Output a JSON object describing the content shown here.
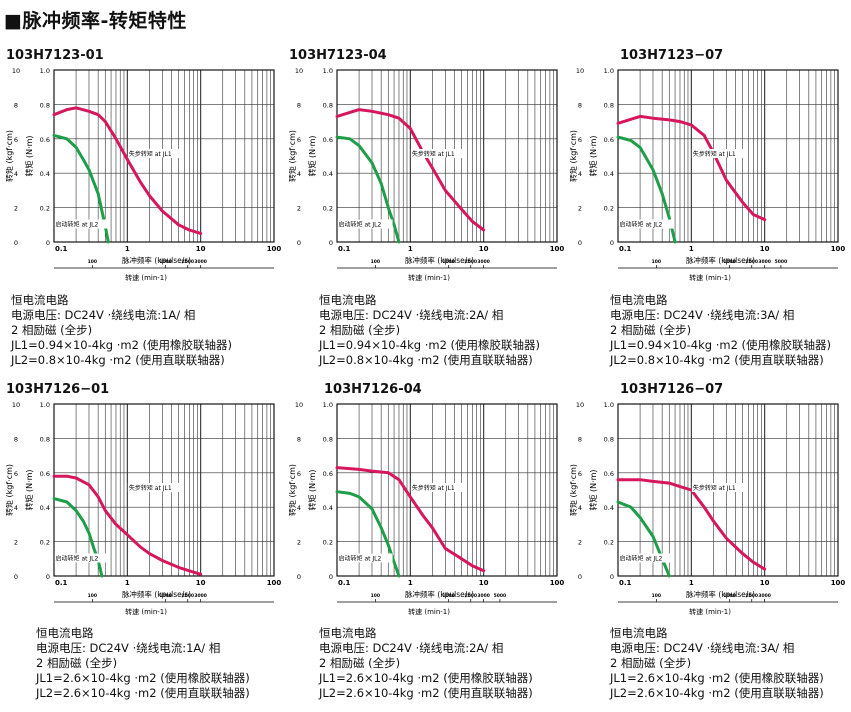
{
  "heading": "■脉冲频率-转矩特性",
  "chart_data": [
    {
      "type": "line",
      "title": "103H7123-01",
      "xlabel": "脉冲频率 (kpulse/s)",
      "ylabel_left": "转矩 (kgf·cm)",
      "ylabel_right": "转矩 (N·m)",
      "speed_label": "转速 (min-1)",
      "x_scale": "log",
      "xlim": [
        0.1,
        100
      ],
      "ylim": [
        0,
        10
      ],
      "left_ticks": [
        "0",
        "2",
        "4",
        "6",
        "8",
        "10"
      ],
      "right_ticks": [
        "0",
        "0.2",
        "0.4",
        "0.6",
        "0.8",
        "1.0"
      ],
      "x_ticks": [
        "0.1",
        "1",
        "10",
        "100"
      ],
      "speed_ticks": [
        "100",
        "1000",
        "2000",
        "3000"
      ],
      "grid": true,
      "annotations": [
        "失步转矩 at JL1",
        "启动转矩 at JL2"
      ],
      "series": [
        {
          "name": "失步转矩 at JL1",
          "color": "#d6175e",
          "x": [
            0.1,
            0.15,
            0.2,
            0.3,
            0.4,
            0.5,
            0.7,
            1,
            1.5,
            2,
            3,
            5,
            7,
            10
          ],
          "y": [
            7.4,
            7.7,
            7.8,
            7.6,
            7.4,
            7.0,
            6.0,
            4.8,
            3.5,
            2.7,
            1.8,
            1.0,
            0.7,
            0.5
          ]
        },
        {
          "name": "启动转矩 at JL2",
          "color": "#1f9e4a",
          "x": [
            0.1,
            0.15,
            0.2,
            0.25,
            0.3,
            0.4,
            0.45,
            0.5,
            0.55
          ],
          "y": [
            6.2,
            6.0,
            5.5,
            4.8,
            4.2,
            2.8,
            1.8,
            0.9,
            0
          ]
        }
      ],
      "notes": [
        "恒电流电路",
        "电源电压:  DC24V ·绕线电流:1A/ 相",
        "2 相励磁 (全步)",
        "JL1=0.94×10-4kg ·m2 (使用橡胶联轴器)",
        "JL2=0.8×10-4kg ·m2 (使用直联联轴器)"
      ]
    },
    {
      "type": "line",
      "title": "103H7123-04",
      "xlabel": "脉冲频率 (kpulse/s)",
      "ylabel_left": "转矩 (kgf·cm)",
      "ylabel_right": "转矩 (N·m)",
      "speed_label": "转速 (min-1)",
      "x_scale": "log",
      "xlim": [
        0.1,
        100
      ],
      "ylim": [
        0,
        10
      ],
      "left_ticks": [
        "0",
        "2",
        "4",
        "6",
        "8",
        "10"
      ],
      "right_ticks": [
        "0",
        "0.2",
        "0.4",
        "0.6",
        "0.8",
        "1.0"
      ],
      "x_ticks": [
        "0.1",
        "1",
        "10",
        "100"
      ],
      "speed_ticks": [
        "100",
        "1000",
        "2000",
        "3000"
      ],
      "grid": true,
      "annotations": [
        "失步转矩 at JL1",
        "启动转矩 at JL2"
      ],
      "series": [
        {
          "name": "失步转矩 at JL1",
          "color": "#d6175e",
          "x": [
            0.1,
            0.2,
            0.3,
            0.5,
            0.7,
            1,
            1.5,
            2,
            3,
            5,
            7,
            10
          ],
          "y": [
            7.3,
            7.7,
            7.6,
            7.4,
            7.2,
            6.6,
            5.2,
            4.3,
            3.0,
            1.9,
            1.2,
            0.7
          ]
        },
        {
          "name": "启动转矩 at JL2",
          "color": "#1f9e4a",
          "x": [
            0.1,
            0.15,
            0.2,
            0.3,
            0.4,
            0.5,
            0.6,
            0.7
          ],
          "y": [
            6.1,
            6.0,
            5.6,
            4.6,
            3.4,
            2.0,
            1.0,
            0
          ]
        }
      ],
      "notes": [
        "恒电流电路",
        "电源电压:  DC24V ·绕线电流:2A/ 相",
        "2 相励磁 (全步)",
        "JL1=0.94×10-4kg ·m2 (使用橡胶联轴器)",
        "JL2=0.8×10-4kg ·m2 (使用直联联轴器)"
      ]
    },
    {
      "type": "line",
      "title": "103H7123−07",
      "xlabel": "脉冲频率 (kpulse/s)",
      "ylabel_left": "转矩 (kgf·cm)",
      "ylabel_right": "转矩 (N·m)",
      "speed_label": "转速 (min-1)",
      "x_scale": "log",
      "xlim": [
        0.1,
        100
      ],
      "ylim": [
        0,
        10
      ],
      "left_ticks": [
        "0",
        "2",
        "4",
        "6",
        "8",
        "10"
      ],
      "right_ticks": [
        "0",
        "0.2",
        "0.4",
        "0.6",
        "0.8",
        "1.0"
      ],
      "x_ticks": [
        "0.1",
        "1",
        "10",
        "100"
      ],
      "speed_ticks": [
        "100",
        "1000",
        "2000",
        "3000",
        "5000"
      ],
      "grid": true,
      "annotations": [
        "失步转矩 at JL1",
        "启动转矩 at JL2"
      ],
      "series": [
        {
          "name": "失步转矩 at JL1",
          "color": "#d6175e",
          "x": [
            0.1,
            0.2,
            0.3,
            0.5,
            0.7,
            1,
            1.5,
            2,
            3,
            5,
            7,
            10
          ],
          "y": [
            6.9,
            7.3,
            7.2,
            7.1,
            7.0,
            6.8,
            6.2,
            5.2,
            3.6,
            2.3,
            1.6,
            1.3
          ]
        },
        {
          "name": "启动转矩 at JL2",
          "color": "#1f9e4a",
          "x": [
            0.1,
            0.15,
            0.2,
            0.3,
            0.4,
            0.5,
            0.6
          ],
          "y": [
            6.1,
            5.9,
            5.5,
            4.2,
            2.8,
            1.4,
            0
          ]
        }
      ],
      "notes": [
        "恒电流电路",
        "电源电压:  DC24V ·绕线电流:3A/ 相",
        "2 相励磁 (全步)",
        "JL1=0.94×10-4kg ·m2 (使用橡胶联轴器)",
        "JL2=0.8×10-4kg ·m2 (使用直联联轴器)"
      ]
    },
    {
      "type": "line",
      "title": "103H7126−01",
      "xlabel": "脉冲频率 (kpulse/s)",
      "ylabel_left": "转矩 (kgf·cm)",
      "ylabel_right": "转矩 (N·m)",
      "speed_label": "转速 (min-1)",
      "x_scale": "log",
      "xlim": [
        0.1,
        100
      ],
      "ylim": [
        0,
        10
      ],
      "left_ticks": [
        "0",
        "2",
        "4",
        "6",
        "8",
        "10"
      ],
      "right_ticks": [
        "0",
        "0.2",
        "0.4",
        "0.6",
        "0.8",
        "1.0"
      ],
      "x_ticks": [
        "0.1",
        "1",
        "10",
        "100"
      ],
      "speed_ticks": [
        "100",
        "1000",
        "2000",
        "3000"
      ],
      "grid": true,
      "annotations": [
        "失步转矩 at JL1",
        "启动转矩 at JL2"
      ],
      "series": [
        {
          "name": "失步转矩 at JL1",
          "color": "#d6175e",
          "x": [
            0.1,
            0.15,
            0.2,
            0.3,
            0.4,
            0.5,
            0.7,
            1,
            1.5,
            2,
            3,
            5,
            7,
            10
          ],
          "y": [
            5.8,
            5.8,
            5.7,
            5.3,
            4.6,
            3.8,
            3.0,
            2.4,
            1.7,
            1.3,
            0.9,
            0.5,
            0.3,
            0.1
          ]
        },
        {
          "name": "启动转矩 at JL2",
          "color": "#1f9e4a",
          "x": [
            0.1,
            0.15,
            0.2,
            0.25,
            0.3,
            0.35,
            0.4,
            0.45
          ],
          "y": [
            4.5,
            4.3,
            3.8,
            3.2,
            2.5,
            1.6,
            0.9,
            0
          ]
        }
      ],
      "notes": [
        "恒电流电路",
        "电源电压:  DC24V ·绕线电流:1A/ 相",
        "2 相励磁 (全步)",
        "JL1=2.6×10-4kg ·m2 (使用橡胶联轴器)",
        "JL2=2.6×10-4kg ·m2 (使用直联联轴器)"
      ]
    },
    {
      "type": "line",
      "title": "103H7126-04",
      "xlabel": "脉冲频率 (kpulse/s)",
      "ylabel_left": "转矩 (kgf·cm)",
      "ylabel_right": "转矩 (N·m)",
      "speed_label": "转速 (min-1)",
      "x_scale": "log",
      "xlim": [
        0.1,
        100
      ],
      "ylim": [
        0,
        10
      ],
      "left_ticks": [
        "0",
        "2",
        "4",
        "6",
        "8",
        "10"
      ],
      "right_ticks": [
        "0",
        "0.2",
        "0.4",
        "0.6",
        "0.8",
        "1.0"
      ],
      "x_ticks": [
        "0.1",
        "1",
        "10",
        "100"
      ],
      "speed_ticks": [
        "100",
        "1000",
        "2000",
        "3000",
        "5000"
      ],
      "grid": true,
      "annotations": [
        "失步转矩 at JL1",
        "启动转矩 at JL2"
      ],
      "series": [
        {
          "name": "失步转矩 at JL1",
          "color": "#d6175e",
          "x": [
            0.1,
            0.2,
            0.3,
            0.5,
            0.7,
            1,
            1.5,
            2,
            3,
            5,
            7,
            10
          ],
          "y": [
            6.3,
            6.2,
            6.1,
            6.0,
            5.6,
            4.6,
            3.5,
            2.8,
            1.6,
            1.0,
            0.6,
            0.3
          ]
        },
        {
          "name": "启动转矩 at JL2",
          "color": "#1f9e4a",
          "x": [
            0.1,
            0.15,
            0.2,
            0.3,
            0.4,
            0.5,
            0.6,
            0.7
          ],
          "y": [
            4.9,
            4.8,
            4.6,
            3.9,
            2.8,
            1.8,
            0.8,
            0
          ]
        }
      ],
      "notes": [
        "恒电流电路",
        "电源电压:  DC24V ·绕线电流:2A/ 相",
        "2 相励磁 (全步)",
        "JL1=2.6×10-4kg ·m2 (使用橡胶联轴器)",
        "JL2=2.6×10-4kg ·m2 (使用直联联轴器)"
      ]
    },
    {
      "type": "line",
      "title": "103H7126−07",
      "xlabel": "脉冲频率 (kpulse/s)",
      "ylabel_left": "转矩 (kgf·cm)",
      "ylabel_right": "转矩 (N·m)",
      "speed_label": "转速 (min-1)",
      "x_scale": "log",
      "xlim": [
        0.1,
        100
      ],
      "ylim": [
        0,
        10
      ],
      "left_ticks": [
        "0",
        "2",
        "4",
        "6",
        "8",
        "10"
      ],
      "right_ticks": [
        "0",
        "0.2",
        "0.4",
        "0.6",
        "0.8",
        "1.0"
      ],
      "x_ticks": [
        "0.1",
        "1",
        "10",
        "100"
      ],
      "speed_ticks": [
        "100",
        "1000",
        "2000",
        "3000"
      ],
      "grid": true,
      "annotations": [
        "失步转矩 at JL1",
        "启动转矩 at JL2"
      ],
      "series": [
        {
          "name": "失步转矩 at JL1",
          "color": "#d6175e",
          "x": [
            0.1,
            0.2,
            0.3,
            0.5,
            0.7,
            1,
            1.5,
            2,
            3,
            5,
            7,
            10
          ],
          "y": [
            5.6,
            5.6,
            5.5,
            5.4,
            5.2,
            5.0,
            4.0,
            3.2,
            2.2,
            1.3,
            0.8,
            0.4
          ]
        },
        {
          "name": "启动转矩 at JL2",
          "color": "#1f9e4a",
          "x": [
            0.1,
            0.15,
            0.2,
            0.3,
            0.4,
            0.5
          ],
          "y": [
            4.3,
            4.0,
            3.4,
            2.3,
            1.0,
            0
          ]
        }
      ],
      "notes": [
        "恒电流电路",
        "电源电压:  DC24V ·绕线电流:3A/ 相",
        "2 相励磁 (全步)",
        "JL1=2.6×10-4kg ·m2 (使用橡胶联轴器)",
        "JL2=2.6×10-4kg ·m2 (使用直联联轴器)"
      ]
    }
  ]
}
